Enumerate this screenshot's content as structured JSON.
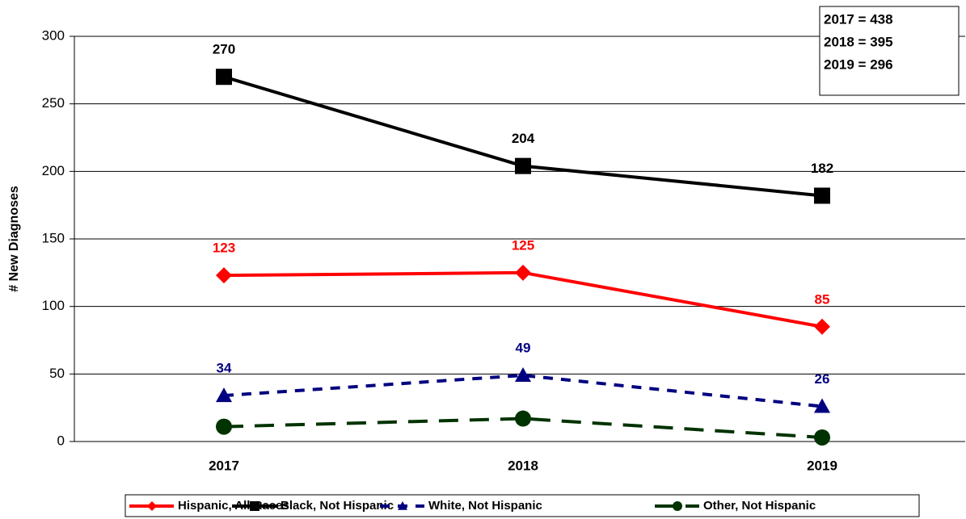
{
  "chart_data": {
    "type": "line",
    "y_label": "# New Diagnoses",
    "categories": [
      "2017",
      "2018",
      "2019"
    ],
    "series": [
      {
        "name": "Hispanic, All Races",
        "color": "#ff0000",
        "marker": "diamond",
        "dash": "solid",
        "data_labels": true,
        "values": [
          123,
          125,
          85
        ]
      },
      {
        "name": "Black, Not Hispanic",
        "color": "#000000",
        "marker": "square",
        "dash": "solid",
        "data_labels": true,
        "values": [
          270,
          204,
          182
        ]
      },
      {
        "name": "White, Not Hispanic",
        "color": "#000080",
        "marker": "triangle",
        "dash": "dash",
        "data_labels": true,
        "values": [
          34,
          49,
          26
        ]
      },
      {
        "name": "Other, Not Hispanic",
        "color": "#003300",
        "marker": "circle",
        "dash": "longdash",
        "data_labels": false,
        "values": [
          11,
          17,
          3
        ]
      }
    ],
    "annotation": [
      "2017 = 438",
      "2018 = 395",
      "2019 = 296"
    ],
    "ylim": [
      0,
      300
    ],
    "yticks": [
      0,
      50,
      100,
      150,
      200,
      250,
      300
    ],
    "grid": true,
    "legend": "bottom"
  }
}
